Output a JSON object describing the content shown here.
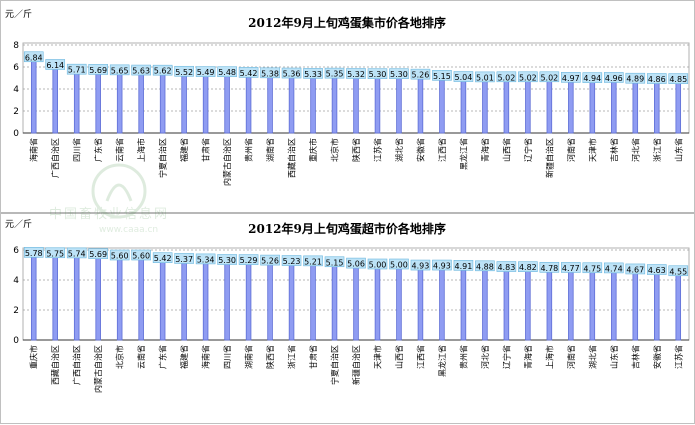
{
  "colors": {
    "bar_fill": "#8f9cf2",
    "bar_stroke": "#5e6ed6",
    "label_bg": "#bde3f7",
    "label_border": "#6cb7de",
    "grid": "#a0a0a0",
    "watermark": "#3a8a3a"
  },
  "watermark": {
    "icon": "caaa-logo-icon",
    "text": "中国畜牧业信息网",
    "url": "www.caaa.cn"
  },
  "chart_data": [
    {
      "type": "bar",
      "title": "2012年9月上旬鸡蛋集市价各地排序",
      "unit_label": "元／斤",
      "ylim": [
        0,
        8
      ],
      "yticks": [
        "0",
        "2",
        "4",
        "6",
        "8"
      ],
      "grid": true,
      "categories": [
        "海南省",
        "广西自治区",
        "四川省",
        "广东省",
        "云南省",
        "上海市",
        "宁夏自治区",
        "福建省",
        "甘肃省",
        "内蒙古自治区",
        "贵州省",
        "湖南省",
        "西藏自治区",
        "重庆市",
        "北京市",
        "陕西省",
        "江苏省",
        "湖北省",
        "安徽省",
        "江西省",
        "黑龙江省",
        "青海省",
        "山西省",
        "辽宁省",
        "新疆自治区",
        "河南省",
        "天津市",
        "吉林省",
        "河北省",
        "浙江省",
        "山东省"
      ],
      "values": [
        6.84,
        6.14,
        5.71,
        5.69,
        5.65,
        5.63,
        5.62,
        5.52,
        5.49,
        5.48,
        5.42,
        5.38,
        5.36,
        5.33,
        5.35,
        5.32,
        5.3,
        5.3,
        5.26,
        5.15,
        5.04,
        5.01,
        5.02,
        5.02,
        5.02,
        4.97,
        4.94,
        4.96,
        4.89,
        4.86,
        4.85
      ],
      "value_labels": [
        "6.84",
        "6.14",
        "5.71",
        "5.69",
        "5.65",
        "5.63",
        "5.62",
        "5.52",
        "5.49",
        "5.48",
        "5.42",
        "5.38",
        "5.36",
        "5.33",
        "5.35",
        "5.32",
        "5.30",
        "5.30",
        "5.26",
        "5.15",
        "5.04",
        "5.01",
        "5.02",
        "5.02",
        "5.02",
        "4.97",
        "4.94",
        "4.96",
        "4.89",
        "4.86",
        "4.85"
      ]
    },
    {
      "type": "bar",
      "title": "2012年9月上旬鸡蛋超市价各地排序",
      "unit_label": "元／斤",
      "ylim": [
        0,
        6
      ],
      "yticks": [
        "0",
        "2",
        "4",
        "6"
      ],
      "grid": true,
      "categories": [
        "重庆市",
        "西藏自治区",
        "广西自治区",
        "内蒙古自治区",
        "北京市",
        "云南省",
        "广东省",
        "福建省",
        "海南省",
        "四川省",
        "湖南省",
        "陕西省",
        "浙江省",
        "甘肃省",
        "宁夏自治区",
        "新疆自治区",
        "天津市",
        "山西省",
        "江西省",
        "黑龙江省",
        "贵州省",
        "河北省",
        "辽宁省",
        "青海省",
        "上海市",
        "河南省",
        "湖北省",
        "山东省",
        "吉林省",
        "安徽省",
        "江苏省"
      ],
      "values": [
        5.78,
        5.75,
        5.74,
        5.69,
        5.6,
        5.6,
        5.42,
        5.37,
        5.34,
        5.3,
        5.29,
        5.26,
        5.23,
        5.21,
        5.15,
        5.06,
        5.0,
        5.0,
        4.93,
        4.93,
        4.91,
        4.88,
        4.83,
        4.82,
        4.78,
        4.77,
        4.75,
        4.74,
        4.67,
        4.63,
        4.55
      ],
      "value_labels": [
        "5.78",
        "5.75",
        "5.74",
        "5.69",
        "5.60",
        "5.60",
        "5.42",
        "5.37",
        "5.34",
        "5.30",
        "5.29",
        "5.26",
        "5.23",
        "5.21",
        "5.15",
        "5.06",
        "5.00",
        "5.00",
        "4.93",
        "4.93",
        "4.91",
        "4.88",
        "4.83",
        "4.82",
        "4.78",
        "4.77",
        "4.75",
        "4.74",
        "4.67",
        "4.63",
        "4.55"
      ]
    }
  ]
}
